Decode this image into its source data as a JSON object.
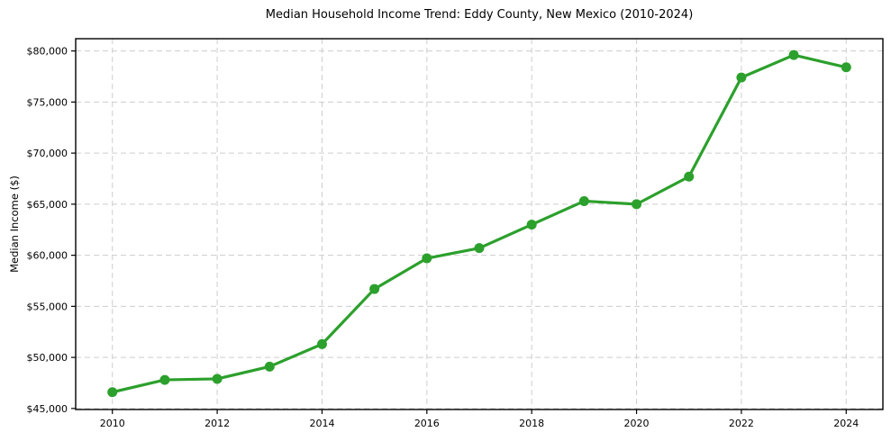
{
  "chart_data": {
    "type": "line",
    "title": "Median Household Income Trend: Eddy County, New Mexico (2010-2024)",
    "xlabel": "",
    "ylabel": "Median Income ($)",
    "x": [
      2010,
      2011,
      2012,
      2013,
      2014,
      2015,
      2016,
      2017,
      2018,
      2019,
      2020,
      2021,
      2022,
      2023,
      2024
    ],
    "values": [
      46600,
      47800,
      47900,
      49100,
      51300,
      56700,
      59700,
      60700,
      63000,
      65300,
      65000,
      67700,
      77400,
      79600,
      78400
    ],
    "xticks": [
      2010,
      2012,
      2014,
      2016,
      2018,
      2020,
      2022,
      2024
    ],
    "xtick_labels": [
      "2010",
      "2012",
      "2014",
      "2016",
      "2018",
      "2020",
      "2022",
      "2024"
    ],
    "yticks": [
      45000,
      50000,
      55000,
      60000,
      65000,
      70000,
      75000,
      80000
    ],
    "ytick_labels": [
      "$45,000",
      "$50,000",
      "$55,000",
      "$60,000",
      "$65,000",
      "$70,000",
      "$75,000",
      "$80,000"
    ],
    "xlim": [
      2009.3,
      2024.7
    ],
    "ylim": [
      44900,
      81200
    ],
    "grid": true,
    "grid_style": "dashed",
    "legend": "none",
    "marker": "circle",
    "colors": {
      "line": "#2ca02c",
      "marker": "#2ca02c",
      "grid": "#cdcdcd",
      "spine": "#000000",
      "text": "#000000",
      "background": "#ffffff"
    }
  }
}
